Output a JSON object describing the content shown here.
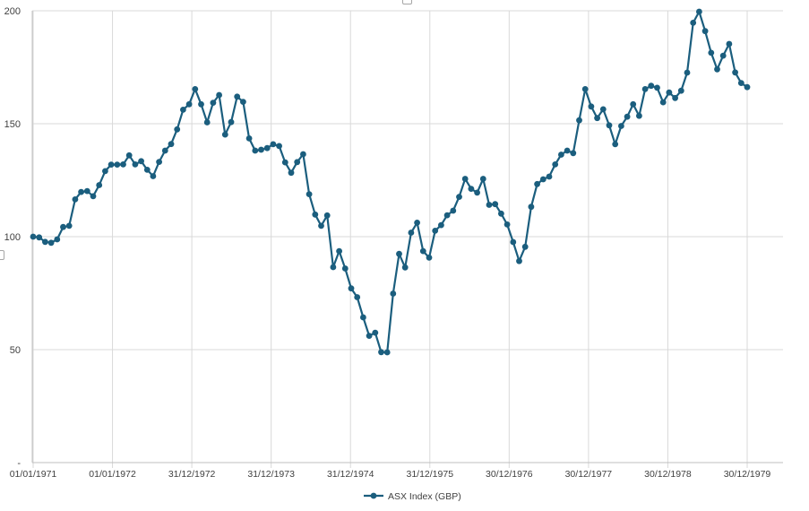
{
  "chart_data": {
    "type": "line",
    "title": "",
    "xlabel": "",
    "ylabel": "",
    "x_ticks": [
      "01/01/1971",
      "01/01/1972",
      "31/12/1972",
      "31/12/1973",
      "31/12/1974",
      "31/12/1975",
      "30/12/1976",
      "30/12/1977",
      "30/12/1978",
      "30/12/1979"
    ],
    "y_ticks": [
      "-",
      "50",
      "100",
      "150",
      "200"
    ],
    "ylim": [
      0,
      200
    ],
    "grid": true,
    "legend_position": "bottom",
    "series": [
      {
        "name": "ASX Index (GBP)",
        "color": "#1b5e7e",
        "values": [
          100.0,
          99.7,
          97.7,
          97.3,
          98.8,
          104.3,
          104.8,
          116.5,
          119.8,
          120.2,
          117.9,
          122.8,
          129.0,
          131.9,
          131.9,
          132.0,
          136.0,
          132.0,
          133.4,
          129.6,
          126.8,
          133.1,
          138.1,
          141.0,
          147.5,
          156.2,
          158.6,
          165.3,
          158.6,
          150.6,
          159.3,
          162.7,
          145.2,
          150.7,
          162.0,
          159.7,
          143.5,
          138.1,
          138.5,
          139.2,
          140.9,
          140.1,
          132.9,
          128.3,
          133.0,
          136.5,
          118.8,
          109.8,
          104.8,
          109.4,
          86.5,
          93.6,
          85.9,
          77.1,
          73.2,
          64.3,
          56.1,
          57.5,
          48.9,
          48.8,
          74.8,
          92.4,
          86.4,
          101.8,
          106.2,
          93.6,
          90.7,
          102.6,
          105.1,
          109.5,
          111.5,
          117.6,
          125.6,
          121.2,
          119.5,
          125.6,
          114.1,
          114.4,
          110.2,
          105.4,
          97.6,
          89.2,
          95.5,
          113.2,
          123.3,
          125.4,
          126.6,
          132.0,
          136.3,
          138.1,
          137.0,
          151.5,
          165.3,
          157.6,
          152.5,
          156.4,
          149.3,
          140.9,
          149.0,
          153.1,
          158.6,
          153.5,
          165.3,
          166.8,
          165.9,
          159.5,
          163.8,
          161.4,
          164.6,
          172.6,
          194.7,
          199.6,
          191.0,
          181.4,
          174.1,
          180.1,
          185.3,
          172.7,
          168.0,
          166.2
        ]
      }
    ]
  }
}
